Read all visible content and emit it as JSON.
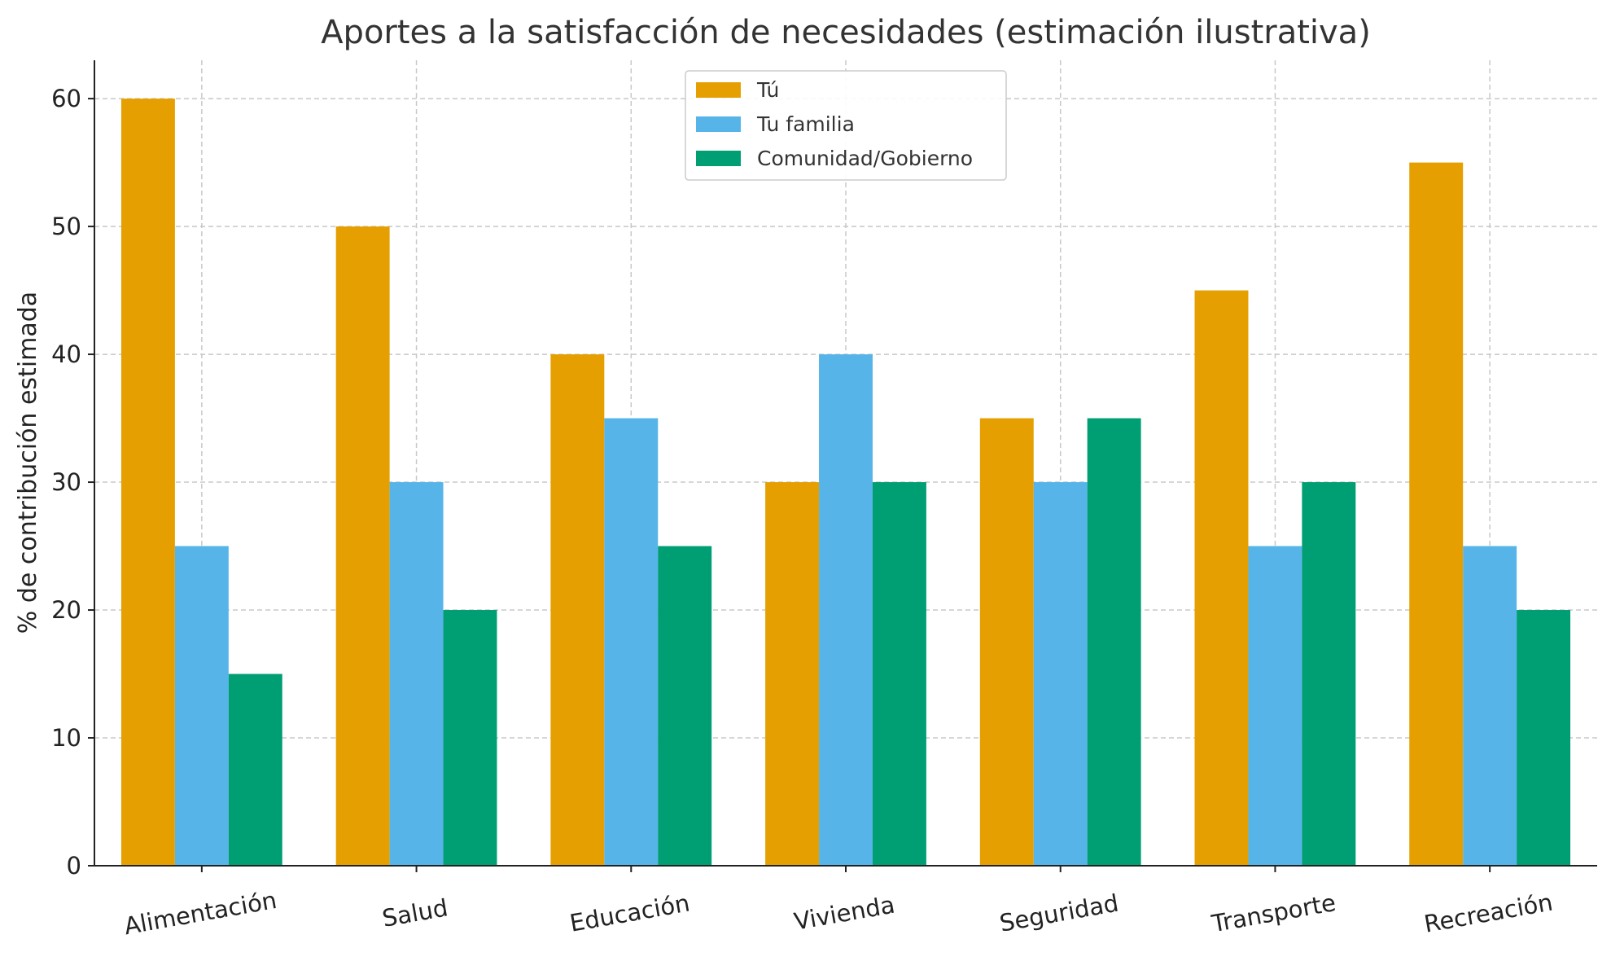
{
  "chart_data": {
    "type": "bar",
    "title": "Aportes a la satisfacción de necesidades (estimación ilustrativa)",
    "xlabel": "",
    "ylabel": "% de contribución estimada",
    "categories": [
      "Alimentación",
      "Salud",
      "Educación",
      "Vivienda",
      "Seguridad",
      "Transporte",
      "Recreación"
    ],
    "series": [
      {
        "name": "Tú",
        "color": "#E69F00",
        "values": [
          60,
          50,
          40,
          30,
          35,
          45,
          55
        ]
      },
      {
        "name": "Tu familia",
        "color": "#56B4E9",
        "values": [
          25,
          30,
          35,
          40,
          30,
          25,
          25
        ]
      },
      {
        "name": "Comunidad/Gobierno",
        "color": "#009E73",
        "values": [
          15,
          20,
          25,
          30,
          35,
          30,
          20
        ]
      }
    ],
    "ylim": [
      0,
      63
    ],
    "yticks": [
      0,
      10,
      20,
      30,
      40,
      50,
      60
    ],
    "grid": true,
    "legend_position": "top-center"
  }
}
